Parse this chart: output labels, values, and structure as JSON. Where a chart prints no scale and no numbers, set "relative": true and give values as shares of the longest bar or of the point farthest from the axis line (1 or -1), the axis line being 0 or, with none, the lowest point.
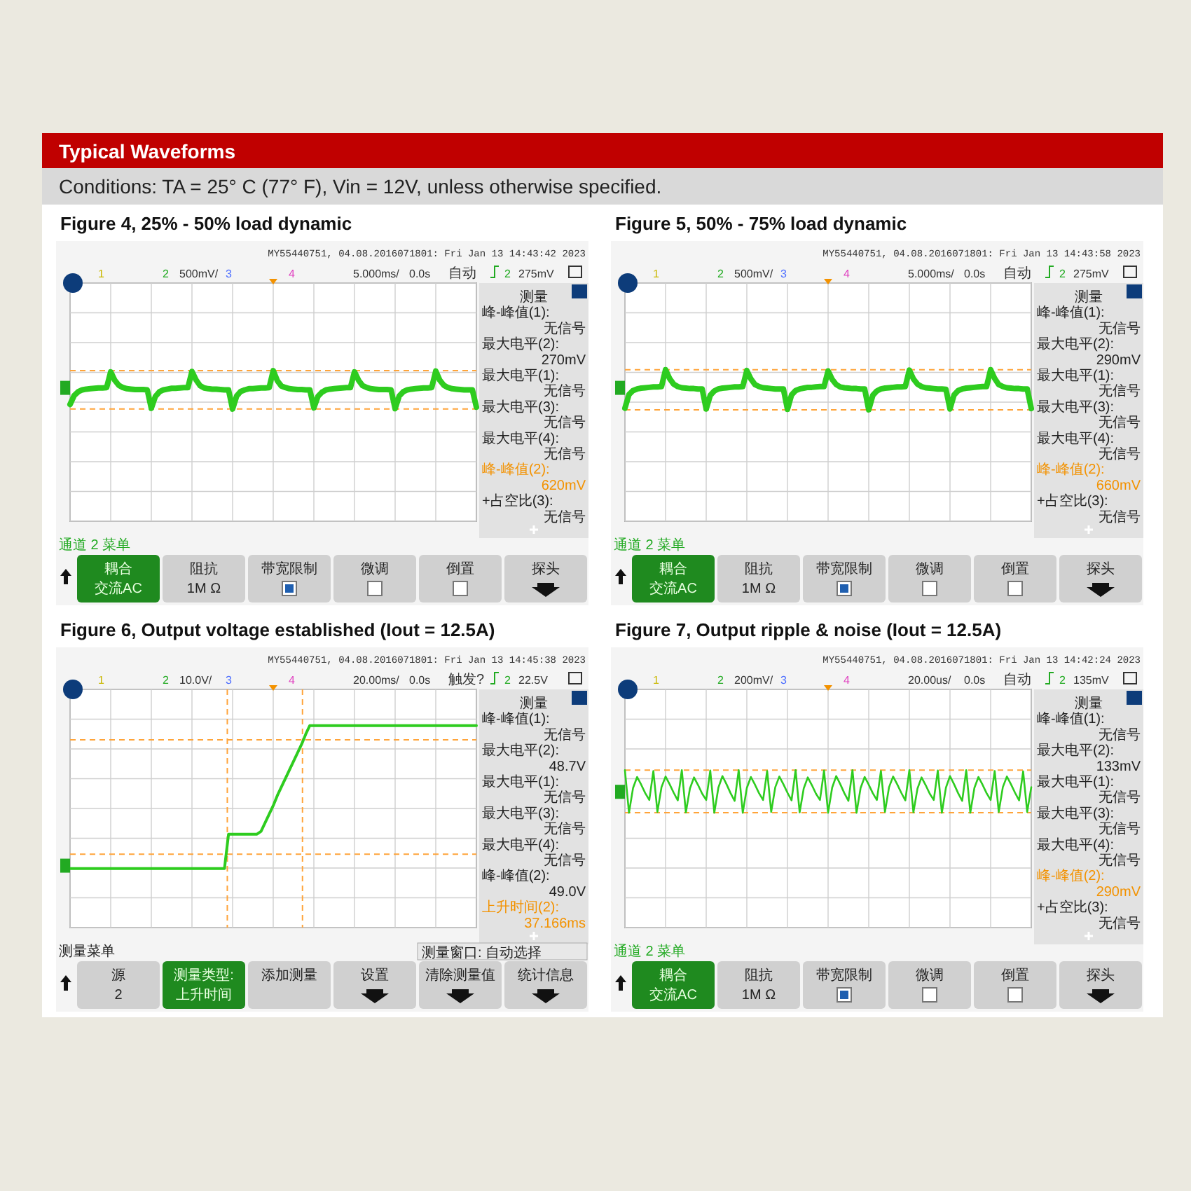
{
  "chart_data": [
    {
      "type": "other",
      "title": "Typical Waveforms",
      "subtitle": "Conditions: TA = 25° C (77° F), Vin = 12V, unless otherwise specified."
    },
    {
      "type": "line",
      "title": "Figure 4, 25% - 50% load dynamic",
      "relative": true,
      "grid": true,
      "categories": [
        null,
        null,
        null,
        null,
        null,
        null,
        null,
        null,
        null,
        null,
        null,
        null,
        null,
        null,
        null,
        null,
        null,
        null,
        null,
        null,
        null,
        null,
        null,
        null,
        null,
        null,
        null,
        null,
        null,
        null,
        null,
        null,
        null,
        null,
        null,
        null,
        null,
        null,
        null,
        null,
        null,
        null,
        null,
        null,
        null,
        null,
        null,
        null,
        null,
        null,
        null,
        null,
        null,
        null,
        null,
        null,
        null,
        null,
        null,
        null,
        null,
        null,
        null,
        null,
        null,
        null,
        null,
        null,
        null,
        null,
        null,
        null,
        null,
        null,
        null,
        null,
        null,
        null,
        null,
        null,
        null,
        null,
        null,
        null,
        null,
        null,
        null,
        null,
        null,
        null,
        null,
        null,
        null,
        null,
        null,
        null,
        null,
        null,
        null,
        null,
        null
      ],
      "series": [
        {
          "color": "#2ecc1f",
          "values": [
            0.12,
            0.35,
            0.45,
            0.5,
            0.52,
            0.53,
            0.54,
            0.55,
            0.55,
            0.56,
            0.97,
            0.75,
            0.62,
            0.56,
            0.53,
            0.52,
            0.51,
            0.51,
            0.51,
            0.5,
            0.02,
            0.33,
            0.45,
            0.5,
            0.52,
            0.54,
            0.54,
            0.55,
            0.56,
            0.56,
            0.98,
            0.76,
            0.61,
            0.55,
            0.53,
            0.52,
            0.52,
            0.51,
            0.5,
            0.5,
            0,
            0.34,
            0.46,
            0.5,
            0.53,
            0.53,
            0.54,
            0.55,
            0.55,
            0.56,
            1,
            0.74,
            0.6,
            0.56,
            0.53,
            0.52,
            0.51,
            0.51,
            0.5,
            0.5,
            0.03,
            0.33,
            0.44,
            0.5,
            0.52,
            0.53,
            0.54,
            0.55,
            0.56,
            0.56,
            0.97,
            0.75,
            0.61,
            0.56,
            0.53,
            0.52,
            0.51,
            0.51,
            0.51,
            0.5,
            0.01,
            0.34,
            0.45,
            0.5,
            0.52,
            0.53,
            0.54,
            0.55,
            0.55,
            0.56,
            0.99,
            0.75,
            0.62,
            0.56,
            0.53,
            0.52,
            0.51,
            0.5,
            0.5,
            0.5,
            0.05
          ]
        }
      ],
      "ref_lines": [
        {
          "axis": "y",
          "value": 1,
          "color": "#ffa43a",
          "line_style": "dashed"
        },
        {
          "axis": "y",
          "value": 0,
          "color": "#ffa43a",
          "line_style": "dashed"
        }
      ],
      "annotations": [
        "MY55440751, 04.08.2016071801: Fri Jan 13 14:43:42 2023",
        "1",
        "2",
        "500mV/",
        "3",
        "4",
        "5.000ms/",
        "0.0s",
        "自动",
        "2",
        "275mV",
        "测量",
        "峰-峰值(1):",
        "无信号",
        "最大电平(2):",
        "270mV",
        "最大电平(1):",
        "无信号",
        "最大电平(3):",
        "无信号",
        "最大电平(4):",
        "无信号",
        "峰-峰值(2):",
        "620mV",
        "+占空比(3):",
        "无信号",
        "通道 2 菜单",
        "耦合",
        "阻抗",
        "带宽限制",
        "微调",
        "倒置",
        "探头",
        "交流AC",
        "1M Ω"
      ]
    },
    {
      "type": "line",
      "title": "Figure 5, 50% - 75% load dynamic",
      "relative": true,
      "grid": true,
      "categories": [
        null,
        null,
        null,
        null,
        null,
        null,
        null,
        null,
        null,
        null,
        null,
        null,
        null,
        null,
        null,
        null,
        null,
        null,
        null,
        null,
        null,
        null,
        null,
        null,
        null,
        null,
        null,
        null,
        null,
        null,
        null,
        null,
        null,
        null,
        null,
        null,
        null,
        null,
        null,
        null,
        null,
        null,
        null,
        null,
        null,
        null,
        null,
        null,
        null,
        null,
        null,
        null,
        null,
        null,
        null,
        null,
        null,
        null,
        null,
        null,
        null,
        null,
        null,
        null,
        null,
        null,
        null,
        null,
        null,
        null,
        null,
        null,
        null,
        null,
        null,
        null,
        null,
        null,
        null,
        null,
        null,
        null,
        null,
        null,
        null,
        null,
        null,
        null,
        null,
        null,
        null,
        null,
        null,
        null,
        null,
        null,
        null,
        null,
        null,
        null,
        null
      ],
      "series": [
        {
          "color": "#2ecc1f",
          "values": [
            0.04,
            0.38,
            0.48,
            0.52,
            0.54,
            0.55,
            0.56,
            0.57,
            0.57,
            0.58,
            1,
            0.78,
            0.64,
            0.58,
            0.55,
            0.54,
            0.53,
            0.53,
            0.52,
            0.52,
            0.02,
            0.36,
            0.47,
            0.52,
            0.54,
            0.55,
            0.56,
            0.57,
            0.57,
            0.58,
            0.98,
            0.77,
            0.63,
            0.58,
            0.55,
            0.54,
            0.53,
            0.52,
            0.52,
            0.52,
            0.01,
            0.37,
            0.48,
            0.52,
            0.54,
            0.56,
            0.56,
            0.57,
            0.58,
            0.58,
            0.97,
            0.76,
            0.63,
            0.57,
            0.55,
            0.54,
            0.53,
            0.53,
            0.52,
            0.52,
            0,
            0.36,
            0.47,
            0.52,
            0.54,
            0.55,
            0.56,
            0.57,
            0.57,
            0.58,
            0.99,
            0.77,
            0.64,
            0.58,
            0.55,
            0.54,
            0.53,
            0.52,
            0.52,
            0.51,
            0.02,
            0.37,
            0.48,
            0.52,
            0.54,
            0.55,
            0.56,
            0.57,
            0.58,
            0.58,
            1,
            0.78,
            0.63,
            0.58,
            0.55,
            0.54,
            0.53,
            0.53,
            0.52,
            0.52,
            0.03
          ]
        }
      ],
      "ref_lines": [
        {
          "axis": "y",
          "value": 1,
          "color": "#ffa43a",
          "line_style": "dashed"
        },
        {
          "axis": "y",
          "value": 0,
          "color": "#ffa43a",
          "line_style": "dashed"
        }
      ],
      "annotations": [
        "MY55440751, 04.08.2016071801: Fri Jan 13 14:43:58 2023",
        "1",
        "2",
        "500mV/",
        "3",
        "4",
        "5.000ms/",
        "0.0s",
        "自动",
        "2",
        "275mV",
        "测量",
        "峰-峰值(1):",
        "无信号",
        "最大电平(2):",
        "290mV",
        "最大电平(1):",
        "无信号",
        "最大电平(3):",
        "无信号",
        "最大电平(4):",
        "无信号",
        "峰-峰值(2):",
        "660mV",
        "+占空比(3):",
        "无信号",
        "通道 2 菜单",
        "耦合",
        "阻抗",
        "带宽限制",
        "微调",
        "倒置",
        "探头",
        "交流AC",
        "1M Ω"
      ]
    },
    {
      "type": "line",
      "title": "Figure 6, Output voltage established (Iout = 12.5A)",
      "relative": true,
      "grid": true,
      "categories": [
        null,
        null,
        null,
        null,
        null,
        null,
        null,
        null,
        null,
        null,
        null,
        null,
        null,
        null,
        null,
        null,
        null,
        null,
        null,
        null,
        null,
        null,
        null,
        null,
        null,
        null,
        null,
        null,
        null,
        null,
        null,
        null,
        null,
        null,
        null,
        null,
        null,
        null,
        null,
        null,
        null,
        null,
        null,
        null,
        null,
        null,
        null,
        null,
        null,
        null,
        null,
        null,
        null,
        null,
        null,
        null,
        null,
        null,
        null,
        null,
        null,
        null,
        null,
        null,
        null,
        null,
        null,
        null,
        null,
        null,
        null,
        null,
        null,
        null,
        null,
        null,
        null,
        null,
        null,
        null,
        null,
        null,
        null,
        null,
        null,
        null,
        null,
        null,
        null,
        null,
        null,
        null,
        null,
        null,
        null,
        null,
        null,
        null,
        null,
        null,
        null
      ],
      "series": [
        {
          "color": "#2ecc1f",
          "values": [
            0,
            0,
            0,
            0,
            0,
            0,
            0,
            0,
            0,
            0,
            0,
            0,
            0,
            0,
            0,
            0,
            0,
            0,
            0,
            0,
            0,
            0,
            0,
            0,
            0,
            0,
            0,
            0,
            0,
            0,
            0,
            0,
            0,
            0,
            0,
            0,
            0,
            0,
            0,
            0.24,
            0.24,
            0.24,
            0.24,
            0.24,
            0.24,
            0.24,
            0.24,
            0.26,
            0.32,
            0.38,
            0.44,
            0.51,
            0.57,
            0.63,
            0.69,
            0.75,
            0.81,
            0.87,
            0.94,
            1,
            1,
            1,
            1,
            1,
            1,
            1,
            1,
            1,
            1,
            1,
            1,
            1,
            1,
            1,
            1,
            1,
            1,
            1,
            1,
            1,
            1,
            1,
            1,
            1,
            1,
            1,
            1,
            1,
            1,
            1,
            1,
            1,
            1,
            1,
            1,
            1,
            1,
            1,
            1,
            1,
            1
          ]
        }
      ],
      "ref_lines": [
        {
          "axis": "y",
          "value": 0.9,
          "color": "#ffa43a",
          "line_style": "dashed"
        },
        {
          "axis": "y",
          "value": 0.1,
          "color": "#ffa43a",
          "line_style": "dashed"
        }
      ],
      "annotations": [
        "MY55440751, 04.08.2016071801: Fri Jan 13 14:45:38 2023",
        "1",
        "2",
        "10.0V/",
        "3",
        "4",
        "20.00ms/",
        "0.0s",
        "触发?",
        "2",
        "22.5V",
        "测量",
        "峰-峰值(1):",
        "无信号",
        "最大电平(2):",
        "48.7V",
        "最大电平(1):",
        "无信号",
        "最大电平(3):",
        "无信号",
        "最大电平(4):",
        "无信号",
        "峰-峰值(2):",
        "49.0V",
        "上升时间(2):",
        "37.166ms",
        "测量菜单",
        "源",
        "测量类型:",
        "添加测量",
        "设置",
        "清除测量值",
        "统计信息",
        "2",
        "上升时间",
        "测量窗口: 自动选择"
      ]
    },
    {
      "type": "line",
      "title": "Figure 7, Output ripple & noise (Iout = 12.5A)",
      "relative": true,
      "grid": true,
      "categories": [
        null,
        null,
        null,
        null,
        null,
        null,
        null,
        null,
        null,
        null,
        null,
        null,
        null,
        null,
        null,
        null,
        null,
        null,
        null,
        null,
        null,
        null,
        null,
        null,
        null,
        null,
        null,
        null,
        null,
        null,
        null,
        null,
        null,
        null,
        null,
        null,
        null,
        null,
        null,
        null,
        null,
        null,
        null,
        null,
        null,
        null,
        null,
        null,
        null,
        null,
        null,
        null,
        null,
        null,
        null,
        null,
        null,
        null,
        null,
        null,
        null,
        null,
        null,
        null,
        null,
        null,
        null,
        null,
        null,
        null,
        null,
        null,
        null,
        null,
        null,
        null,
        null,
        null,
        null,
        null,
        null,
        null,
        null,
        null,
        null,
        null,
        null,
        null,
        null,
        null,
        null,
        null,
        null,
        null,
        null,
        null,
        null,
        null,
        null,
        null,
        null
      ],
      "series": [
        {
          "color": "#2ecc1f",
          "values": [
            1,
            0,
            0.58,
            0.84,
            0.66,
            0.46,
            0.3,
            0.98,
            0.02,
            0.6,
            0.85,
            0.67,
            0.47,
            0.29,
            1,
            0.01,
            0.57,
            0.83,
            0.65,
            0.45,
            0.3,
            0.99,
            0,
            0.59,
            0.86,
            0.67,
            0.46,
            0.28,
            1,
            0,
            0.58,
            0.84,
            0.66,
            0.46,
            0.3,
            0.98,
            0.02,
            0.6,
            0.85,
            0.67,
            0.47,
            0.29,
            1,
            0.01,
            0.57,
            0.83,
            0.65,
            0.45,
            0.3,
            0.99,
            0,
            0.59,
            0.86,
            0.67,
            0.46,
            0.28,
            1,
            0,
            0.58,
            0.84,
            0.66,
            0.46,
            0.3,
            0.98,
            0.02,
            0.6,
            0.85,
            0.67,
            0.47,
            0.29,
            1,
            0.01,
            0.57,
            0.83,
            0.65,
            0.45,
            0.3,
            0.99,
            0,
            0.59,
            0.86,
            0.67,
            0.46,
            0.28,
            1,
            0,
            0.58,
            0.84,
            0.66,
            0.46,
            0.3,
            0.98,
            0.02,
            0.6,
            0.85,
            0.67,
            0.47,
            0.29,
            0.97,
            0.02,
            0.6
          ]
        }
      ],
      "ref_lines": [
        {
          "axis": "y",
          "value": 1,
          "color": "#ffa43a",
          "line_style": "dashed"
        },
        {
          "axis": "y",
          "value": 0,
          "color": "#ffa43a",
          "line_style": "dashed"
        }
      ],
      "annotations": [
        "MY55440751, 04.08.2016071801: Fri Jan 13 14:42:24 2023",
        "1",
        "2",
        "200mV/",
        "3",
        "4",
        "20.00us/",
        "0.0s",
        "自动",
        "2",
        "135mV",
        "测量",
        "峰-峰值(1):",
        "无信号",
        "最大电平(2):",
        "133mV",
        "最大电平(1):",
        "无信号",
        "最大电平(3):",
        "无信号",
        "最大电平(4):",
        "无信号",
        "峰-峰值(2):",
        "290mV",
        "+占空比(3):",
        "无信号",
        "通道 2 菜单",
        "耦合",
        "阻抗",
        "带宽限制",
        "微调",
        "倒置",
        "探头",
        "交流AC",
        "1M Ω"
      ]
    }
  ]
}
